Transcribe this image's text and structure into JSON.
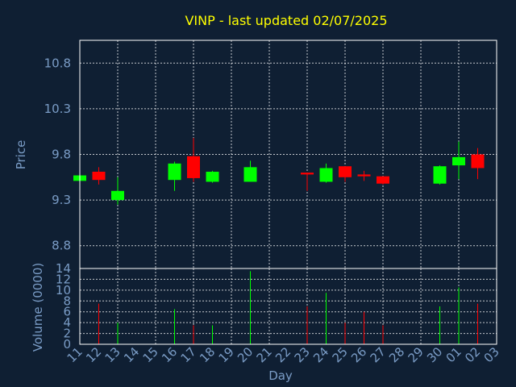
{
  "colors": {
    "background": "#0f1f33",
    "up": "#00ff00",
    "down": "#ff0000",
    "title": "#ffff00",
    "axis_text": "#7a9cc6",
    "grid": "#ffffff"
  },
  "chart_data": [
    {
      "type": "candlestick",
      "title": "VINP - last updated 02/07/2025",
      "ylabel": "Price",
      "ylim": [
        8.55,
        11.05
      ],
      "yticks": [
        "10.8",
        "10.3",
        "9.8",
        "9.3",
        "8.8"
      ],
      "ytick_values": [
        10.8,
        10.3,
        9.8,
        9.3,
        8.8
      ],
      "grid": true,
      "series": [
        {
          "date": "11",
          "open": 9.51,
          "high": 9.56,
          "low": 9.49,
          "close": 9.57
        },
        {
          "date": "12",
          "open": 9.61,
          "high": 9.66,
          "low": 9.47,
          "close": 9.52
        },
        {
          "date": "13",
          "open": 9.3,
          "high": 9.55,
          "low": 9.25,
          "close": 9.4
        },
        {
          "date": "16",
          "open": 9.52,
          "high": 9.72,
          "low": 9.4,
          "close": 9.7
        },
        {
          "date": "17",
          "open": 9.78,
          "high": 9.98,
          "low": 9.5,
          "close": 9.54
        },
        {
          "date": "18",
          "open": 9.5,
          "high": 9.62,
          "low": 9.49,
          "close": 9.61
        },
        {
          "date": "20",
          "open": 9.5,
          "high": 9.73,
          "low": 9.5,
          "close": 9.66
        },
        {
          "date": "23",
          "open": 9.6,
          "high": 9.6,
          "low": 9.4,
          "close": 9.58
        },
        {
          "date": "24",
          "open": 9.5,
          "high": 9.7,
          "low": 9.49,
          "close": 9.65
        },
        {
          "date": "25",
          "open": 9.67,
          "high": 9.67,
          "low": 9.5,
          "close": 9.55
        },
        {
          "date": "26",
          "open": 9.58,
          "high": 9.62,
          "low": 9.51,
          "close": 9.56
        },
        {
          "date": "27",
          "open": 9.56,
          "high": 9.56,
          "low": 9.47,
          "close": 9.48
        },
        {
          "date": "30",
          "open": 9.48,
          "high": 9.68,
          "low": 9.47,
          "close": 9.67
        },
        {
          "date": "01",
          "open": 9.68,
          "high": 9.94,
          "low": 9.53,
          "close": 9.77
        },
        {
          "date": "02",
          "open": 9.8,
          "high": 9.87,
          "low": 9.53,
          "close": 9.65
        }
      ]
    },
    {
      "type": "bar",
      "xlabel": "Day",
      "ylabel": "Volume (0000)",
      "ylim": [
        0,
        14
      ],
      "yticks": [
        "0",
        "2",
        "4",
        "6",
        "8",
        "10",
        "12",
        "14"
      ],
      "ytick_values": [
        0,
        2,
        4,
        6,
        8,
        10,
        12,
        14
      ],
      "categories": [
        "11",
        "12",
        "13",
        "14",
        "15",
        "16",
        "17",
        "18",
        "19",
        "20",
        "21",
        "22",
        "23",
        "24",
        "25",
        "26",
        "27",
        "28",
        "29",
        "30",
        "01",
        "02",
        "03"
      ],
      "values": [
        {
          "date": "12",
          "volume": 7.5,
          "color": "down"
        },
        {
          "date": "13",
          "volume": 4.0,
          "color": "up"
        },
        {
          "date": "16",
          "volume": 6.5,
          "color": "up"
        },
        {
          "date": "17",
          "volume": 3.5,
          "color": "down"
        },
        {
          "date": "18",
          "volume": 3.5,
          "color": "up"
        },
        {
          "date": "20",
          "volume": 13.5,
          "color": "up"
        },
        {
          "date": "23",
          "volume": 7.0,
          "color": "down"
        },
        {
          "date": "24",
          "volume": 9.5,
          "color": "up"
        },
        {
          "date": "25",
          "volume": 4.0,
          "color": "down"
        },
        {
          "date": "26",
          "volume": 6.0,
          "color": "down"
        },
        {
          "date": "27",
          "volume": 3.5,
          "color": "down"
        },
        {
          "date": "30",
          "volume": 7.0,
          "color": "up"
        },
        {
          "date": "01",
          "volume": 10.5,
          "color": "up"
        },
        {
          "date": "02",
          "volume": 7.5,
          "color": "down"
        }
      ]
    }
  ]
}
